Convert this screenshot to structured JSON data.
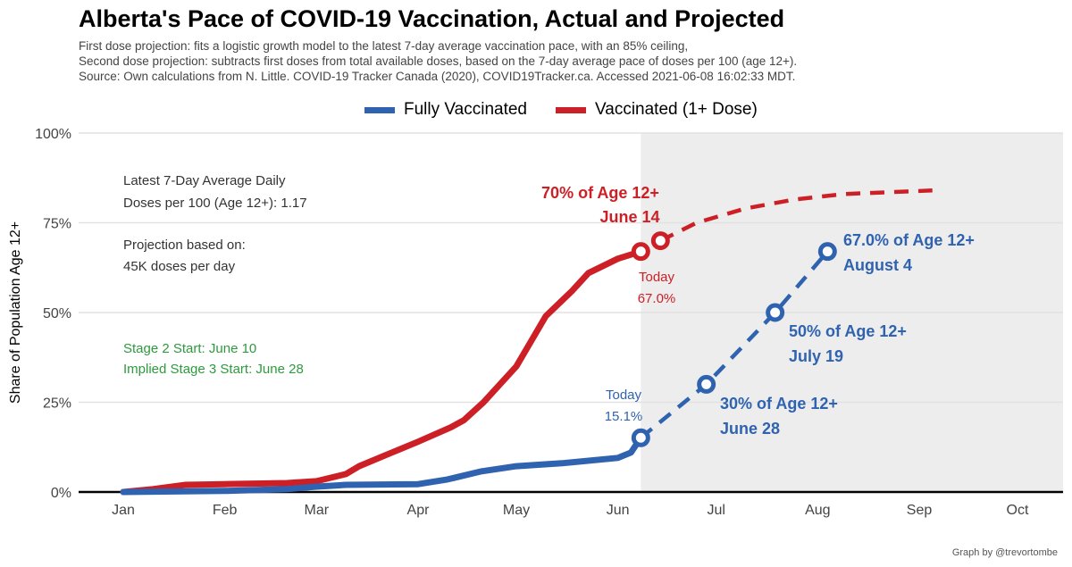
{
  "chart_data": {
    "type": "line",
    "title": "Alberta's Pace of COVID-19 Vaccination, Actual and Projected",
    "subtitle": [
      "First dose projection: fits a logistic growth model to the latest 7-day average vaccination pace, with an 85% ceiling,",
      "Second dose projection: subtracts first doses from total available doses, based on the 7-day average pace of doses per 100 (age 12+).",
      "Source: Own calculations from N. Little. COVID-19 Tracker Canada (2020), COVID19Tracker.ca. Accessed 2021-06-08 16:02:33 MDT."
    ],
    "xlabel": "",
    "ylabel": "Share of Population Age 12+",
    "x_unit": "day of 2021 (0 = Jan 1)",
    "xlim": [
      0,
      273
    ],
    "ylim": [
      0,
      100
    ],
    "x_ticks": [
      {
        "label": "Jan",
        "day": 0
      },
      {
        "label": "Feb",
        "day": 31
      },
      {
        "label": "Mar",
        "day": 59
      },
      {
        "label": "Apr",
        "day": 90
      },
      {
        "label": "May",
        "day": 120
      },
      {
        "label": "Jun",
        "day": 151
      },
      {
        "label": "Jul",
        "day": 181
      },
      {
        "label": "Aug",
        "day": 212
      },
      {
        "label": "Sep",
        "day": 243
      },
      {
        "label": "Oct",
        "day": 273
      }
    ],
    "y_ticks": [
      {
        "label": "0%",
        "v": 0
      },
      {
        "label": "25%",
        "v": 25
      },
      {
        "label": "50%",
        "v": 50
      },
      {
        "label": "75%",
        "v": 75
      },
      {
        "label": "100%",
        "v": 100
      }
    ],
    "projection_start_day": 158,
    "legend": {
      "placement": "top",
      "entries": [
        {
          "name": "Fully Vaccinated",
          "color": "#2f63b0"
        },
        {
          "name": "Vaccinated (1+ Dose)",
          "color": "#cc2026"
        }
      ]
    },
    "series": [
      {
        "name": "Vaccinated (1+ Dose)",
        "kind": "actual",
        "color": "#cc2026",
        "x": [
          0,
          9,
          19,
          31,
          50,
          59,
          68,
          72,
          82,
          90,
          100,
          104,
          110,
          120,
          129,
          137,
          142,
          151,
          158
        ],
        "y": [
          0,
          0.8,
          2,
          2.2,
          2.5,
          3,
          5,
          7.2,
          11,
          14,
          18,
          20,
          25,
          35,
          49,
          56,
          61,
          65,
          67
        ]
      },
      {
        "name": "Fully Vaccinated",
        "kind": "actual",
        "color": "#2f63b0",
        "x": [
          0,
          31,
          50,
          59,
          68,
          90,
          99,
          109,
          120,
          134,
          151,
          155,
          158
        ],
        "y": [
          0,
          0.3,
          0.8,
          1.5,
          2,
          2.2,
          3.5,
          5.7,
          7.2,
          8,
          9.5,
          11,
          15.1
        ]
      },
      {
        "name": "Vaccinated (1+ Dose)",
        "kind": "projected",
        "color": "#cc2026",
        "x": [
          164,
          175,
          190,
          205,
          220,
          247
        ],
        "y": [
          70,
          75,
          79,
          81.5,
          83,
          84
        ]
      },
      {
        "name": "Fully Vaccinated",
        "kind": "projected",
        "color": "#2f63b0",
        "x": [
          158,
          178,
          199,
          215
        ],
        "y": [
          15.1,
          30,
          50,
          67
        ]
      }
    ],
    "markers": [
      {
        "color": "#cc2026",
        "x": 158,
        "y": 67
      },
      {
        "color": "#cc2026",
        "x": 164,
        "y": 70
      },
      {
        "color": "#2f63b0",
        "x": 158,
        "y": 15.1
      },
      {
        "color": "#2f63b0",
        "x": 178,
        "y": 30
      },
      {
        "color": "#2f63b0",
        "x": 199,
        "y": 50
      },
      {
        "color": "#2f63b0",
        "x": 215,
        "y": 67
      }
    ],
    "annotations": {
      "avg1": "Latest 7-Day Average Daily",
      "avg2": "Doses per 100 (Age 12+): 1.17",
      "proj1": "Projection based on:",
      "proj2": "45K doses per day",
      "stage2": "Stage 2 Start: June 10",
      "stage3": "Implied Stage 3 Start: June 28",
      "red70a": "70% of Age 12+",
      "red70b": "June 14",
      "redToday": "Today",
      "redTodayVal": "67.0%",
      "blueToday": "Today",
      "blueTodayVal": "15.1%",
      "b30a": "30% of Age 12+",
      "b30b": "June 28",
      "b50a": "50% of Age 12+",
      "b50b": "July 19",
      "b67a": "67.0% of Age 12+",
      "b67b": "August 4"
    },
    "credit": "Graph by @trevortombe"
  }
}
